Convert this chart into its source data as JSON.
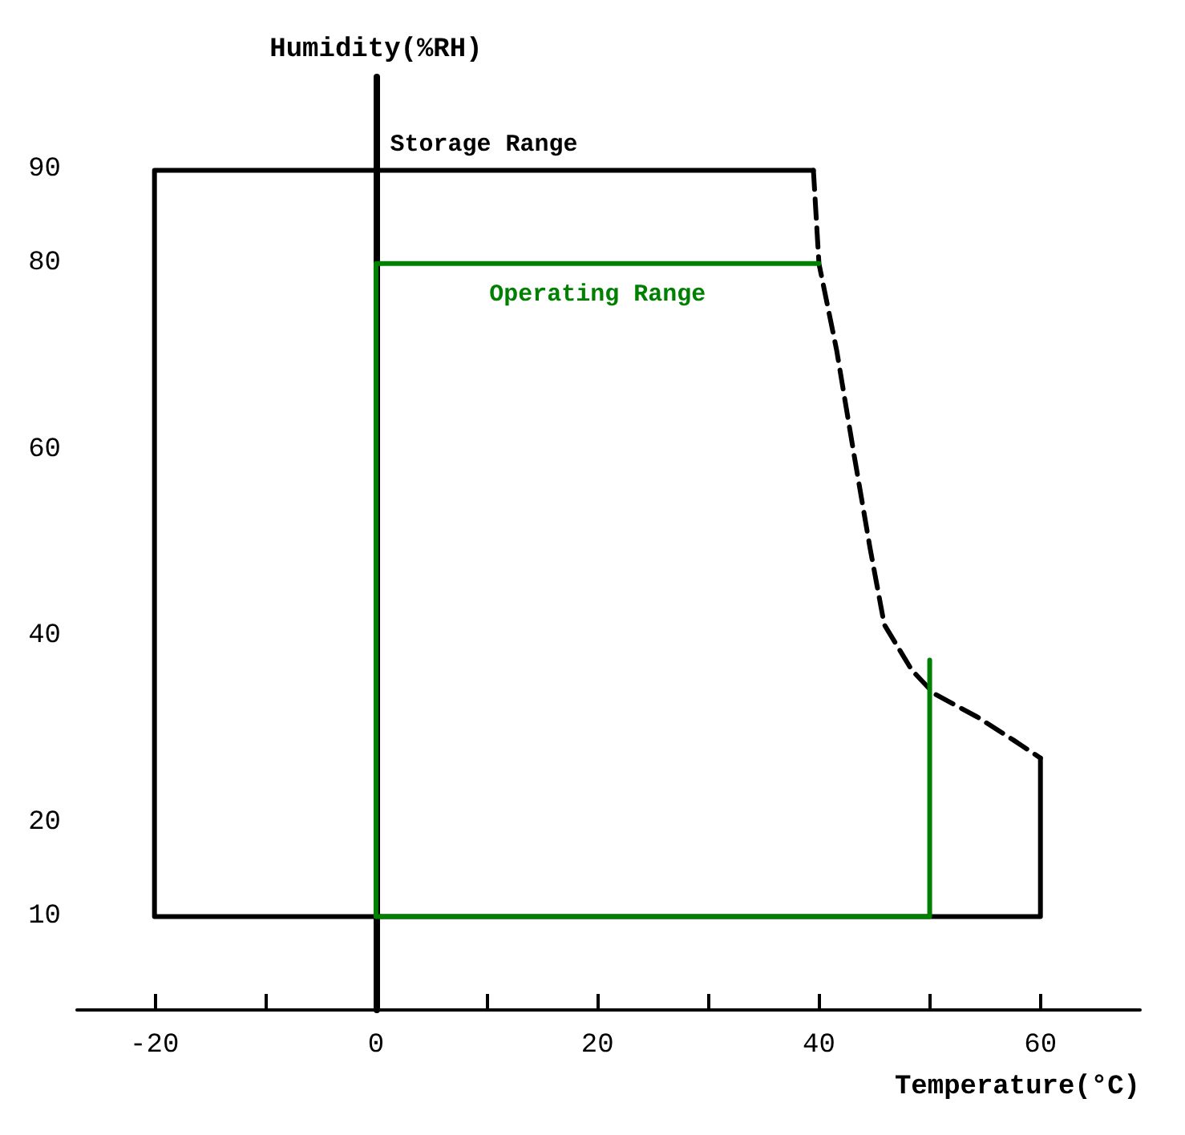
{
  "chart_data": {
    "type": "line",
    "xlabel": "Temperature(°C)",
    "ylabel": "Humidity(%RH)",
    "xlim": [
      -27,
      69
    ],
    "ylim": [
      0,
      100
    ],
    "xticks": [
      -20,
      {
        "value": -10,
        "label": null
      },
      0,
      {
        "value": 10,
        "label": null
      },
      20,
      {
        "value": 30,
        "label": null
      },
      40,
      {
        "value": 50,
        "label": null
      },
      60
    ],
    "yticks": [
      10,
      20,
      40,
      60,
      80,
      90
    ],
    "series": [
      {
        "name": "Storage Range",
        "color": "#000000",
        "line_style": "solid",
        "x": [
          39.5,
          -20,
          -20,
          60,
          60
        ],
        "values": [
          90,
          90,
          10,
          10,
          27
        ]
      },
      {
        "color": "#000000",
        "line_style": "dashed",
        "x": [
          39.5,
          40,
          41.6,
          43.2,
          44.6,
          45.9,
          48.4,
          50.4,
          54.3,
          57.6,
          60
        ],
        "values": [
          90,
          80,
          70.7,
          59.3,
          49.6,
          41.3,
          36.4,
          33.9,
          31.4,
          28.9,
          27
        ]
      },
      {
        "name": "Operating Range",
        "color": "#008000",
        "line_style": "solid",
        "x": [
          40,
          0,
          0,
          50,
          50
        ],
        "values": [
          80,
          80,
          10,
          10,
          37.5
        ]
      }
    ]
  }
}
